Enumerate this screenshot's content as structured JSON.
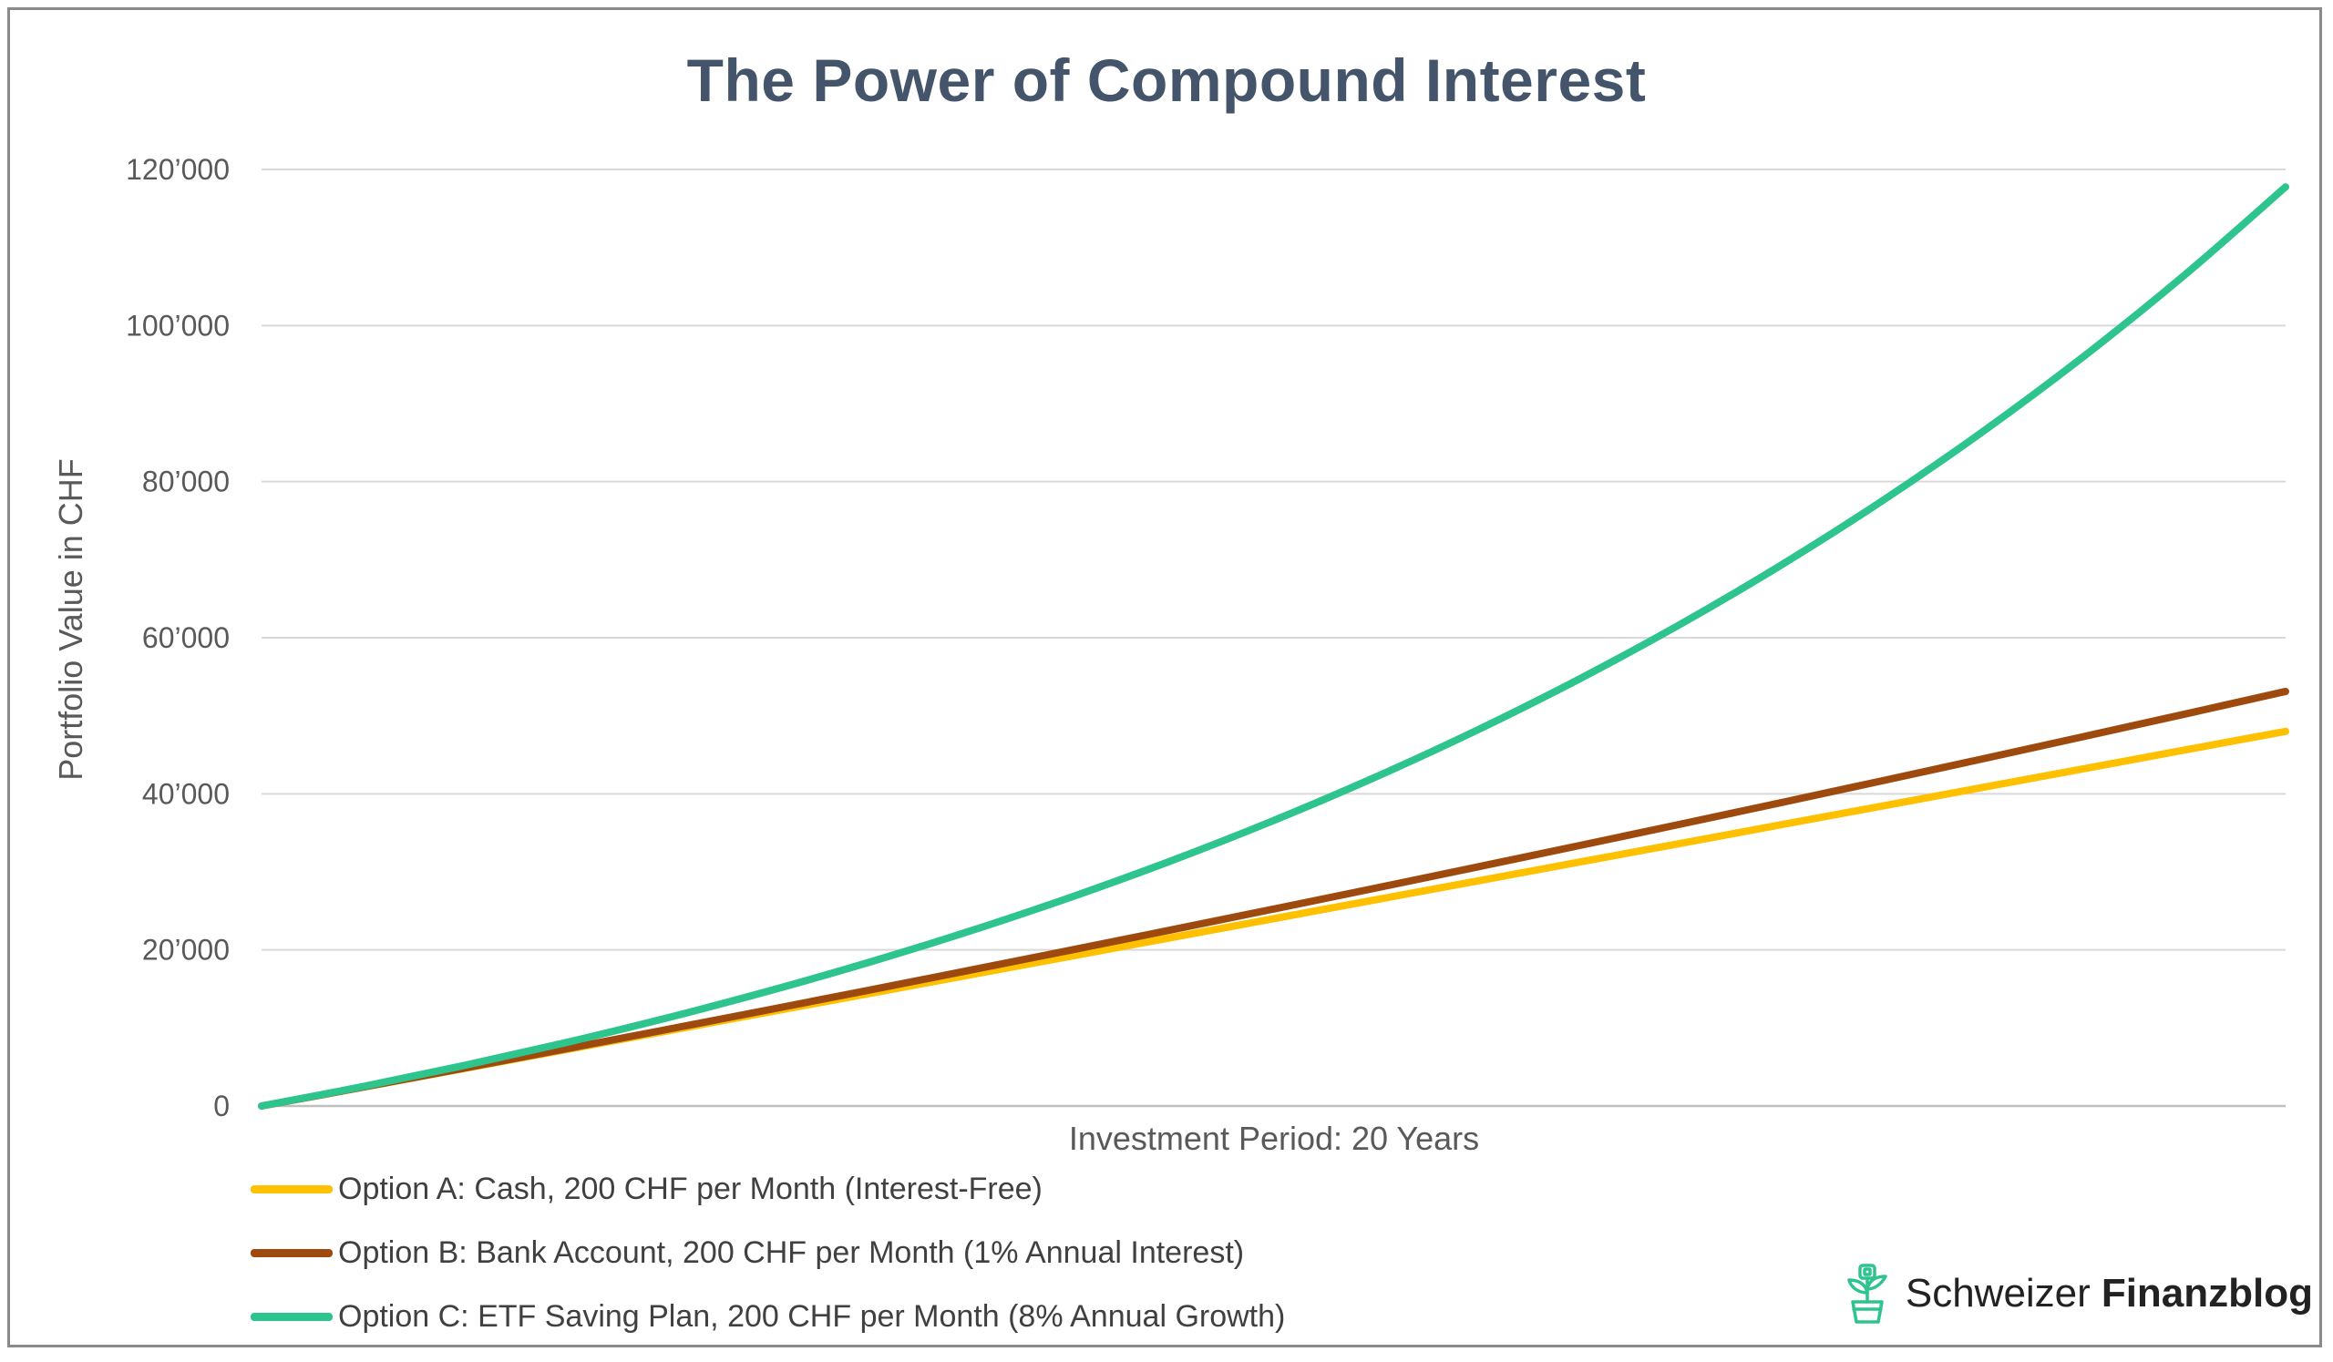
{
  "chart_data": {
    "type": "line",
    "title": "The Power of Compound Interest",
    "xlabel": "Investment Period: 20 Years",
    "ylabel": "Portfolio Value in CHF",
    "ylim": [
      0,
      120000
    ],
    "yticks": [
      0,
      20000,
      40000,
      60000,
      80000,
      100000,
      120000
    ],
    "ytick_labels": [
      "0",
      "20’000",
      "40’000",
      "60’000",
      "80’000",
      "100’000",
      "120’000"
    ],
    "x": [
      0,
      1,
      2,
      3,
      4,
      5,
      6,
      7,
      8,
      9,
      10,
      11,
      12,
      13,
      14,
      15,
      16,
      17,
      18,
      19,
      20
    ],
    "series": [
      {
        "name": "Option A: Cash, 200 CHF per Month (Interest-Free)",
        "color": "#ffc000",
        "values": [
          0,
          2400,
          4800,
          7200,
          9600,
          12000,
          14400,
          16800,
          19200,
          21600,
          24000,
          26400,
          28800,
          31200,
          33600,
          36000,
          38400,
          40800,
          43200,
          45600,
          48000
        ]
      },
      {
        "name": "Option B: Bank Account, 200 CHF per Month (1% Annual Interest)",
        "color": "#9e4a0e",
        "values": [
          0,
          2411,
          4846,
          7306,
          9791,
          12301,
          14836,
          17397,
          19983,
          22596,
          25234,
          27899,
          30591,
          33310,
          36056,
          38829,
          41631,
          44460,
          47318,
          50204,
          53119
        ]
      },
      {
        "name": "Option C: ETF Saving Plan, 200 CHF per Month (8% Annual Growth)",
        "color": "#2ec48e",
        "values": [
          0,
          2489,
          5185,
          8104,
          11266,
          14690,
          18398,
          22415,
          26764,
          31475,
          36577,
          42102,
          48086,
          54567,
          61585,
          69186,
          77418,
          86334,
          95989,
          106446,
          117770
        ]
      }
    ],
    "grid": true,
    "legend_position": "bottom-left"
  },
  "brand": {
    "name_regular": "Schweizer",
    "name_bold": "Finanzblog",
    "icon": "plant-pot-icon",
    "icon_color": "#2ec48e"
  }
}
